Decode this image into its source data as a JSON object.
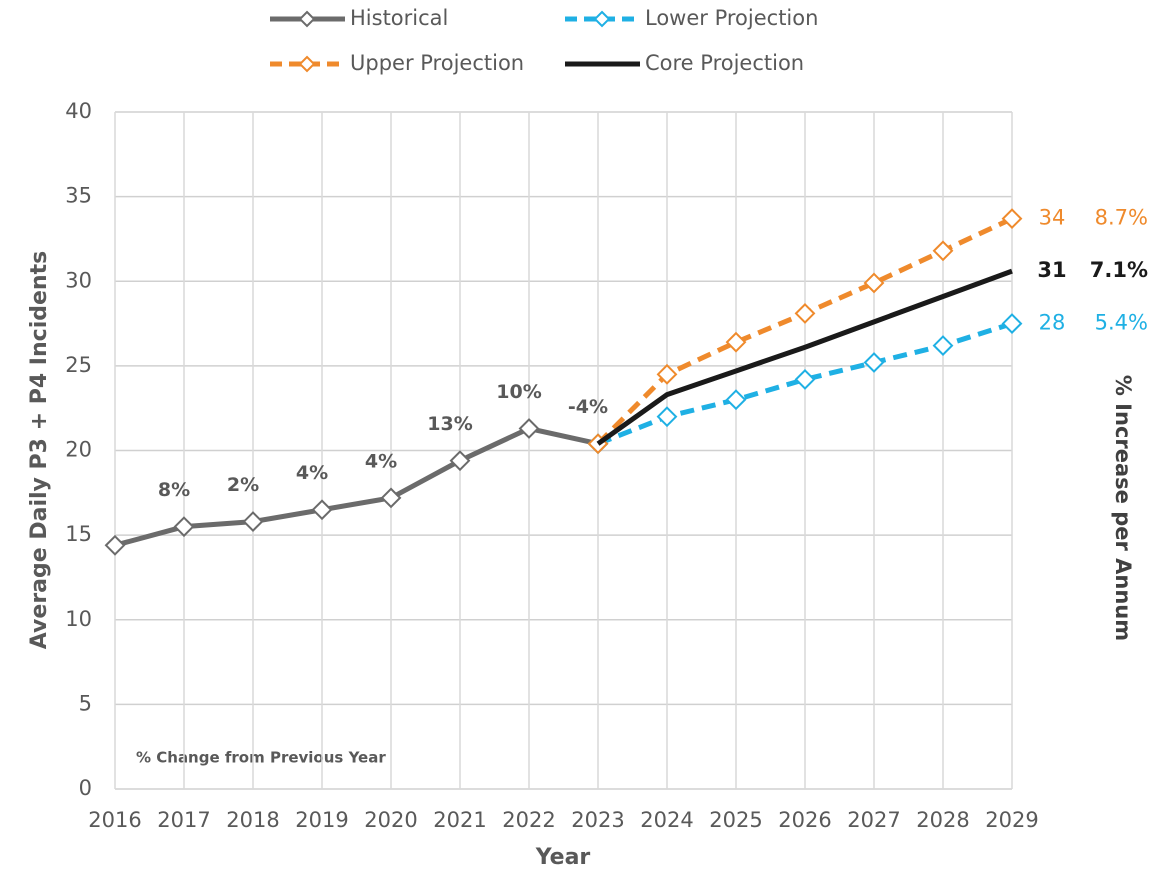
{
  "chart_data": {
    "type": "line",
    "y_axis_label": "Average Daily P3 + P4 Incidents",
    "x_axis_label": "Year",
    "y2_axis_label": "% Increase per Annum",
    "annotation": "% Change from Previous Year",
    "x": [
      2016,
      2017,
      2018,
      2019,
      2020,
      2021,
      2022,
      2023,
      2024,
      2025,
      2026,
      2027,
      2028,
      2029
    ],
    "xlim": [
      2016,
      2029
    ],
    "xticks": [
      2016,
      2017,
      2018,
      2019,
      2020,
      2021,
      2022,
      2023,
      2024,
      2025,
      2026,
      2027,
      2028,
      2029
    ],
    "ylim": [
      0,
      40
    ],
    "yticks": [
      0,
      5,
      10,
      15,
      20,
      25,
      30,
      35,
      40
    ],
    "grid": true,
    "legend": "top",
    "pct_change": {
      "values": [
        null,
        8,
        2,
        4,
        4,
        13,
        10,
        -4,
        null,
        null,
        null,
        null,
        null,
        null
      ],
      "value_labels": [
        null,
        "8%",
        "2%",
        "4%",
        "4%",
        "13%",
        "10%",
        "-4%",
        null,
        null,
        null,
        null,
        null,
        null
      ]
    },
    "series": [
      {
        "name": "Historical",
        "color": "#6b6b6b",
        "dash": false,
        "markers": true,
        "values": [
          14.4,
          15.5,
          15.8,
          16.5,
          17.2,
          19.4,
          21.3,
          20.4,
          null,
          null,
          null,
          null,
          null,
          null
        ]
      },
      {
        "name": "Lower Projection",
        "color": "#1fb0e4",
        "dash": true,
        "markers": true,
        "values": [
          null,
          null,
          null,
          null,
          null,
          null,
          null,
          20.4,
          22.0,
          23.0,
          24.2,
          25.2,
          26.2,
          27.5
        ],
        "value_labels": [
          null,
          null,
          null,
          null,
          null,
          null,
          null,
          null,
          null,
          null,
          null,
          null,
          null,
          "28"
        ],
        "growth": 5.4,
        "growth_label": "5.4%"
      },
      {
        "name": "Upper Projection",
        "color": "#ef8a2c",
        "dash": true,
        "markers": true,
        "values": [
          null,
          null,
          null,
          null,
          null,
          null,
          null,
          20.4,
          24.5,
          26.4,
          28.1,
          29.9,
          31.8,
          33.7
        ],
        "value_labels": [
          null,
          null,
          null,
          null,
          null,
          null,
          null,
          null,
          null,
          null,
          null,
          null,
          null,
          "34"
        ],
        "growth": 8.7,
        "growth_label": "8.7%"
      },
      {
        "name": "Core Projection",
        "color": "#1a1a1a",
        "dash": false,
        "markers": false,
        "bold_labels": true,
        "values": [
          null,
          null,
          null,
          null,
          null,
          null,
          null,
          20.4,
          23.3,
          24.7,
          26.1,
          27.6,
          29.1,
          30.6
        ],
        "value_labels": [
          null,
          null,
          null,
          null,
          null,
          null,
          null,
          null,
          null,
          null,
          null,
          null,
          null,
          "31"
        ],
        "growth": 7.1,
        "growth_label": "7.1%"
      }
    ]
  }
}
